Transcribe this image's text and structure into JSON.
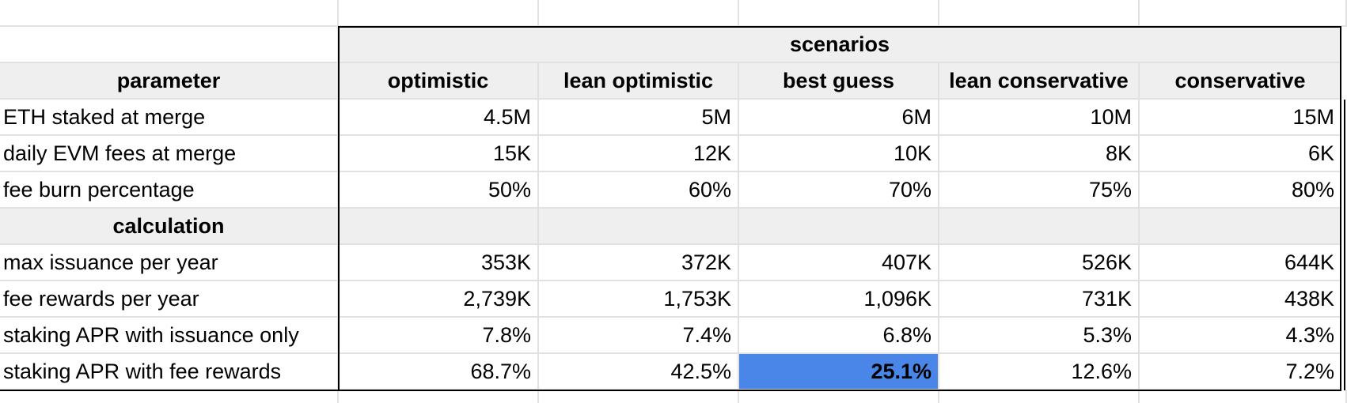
{
  "sheet": {
    "group_header": "scenarios",
    "parameter_header": "parameter",
    "scenario_headers": [
      "optimistic",
      "lean optimistic",
      "best guess",
      "lean conservative",
      "conservative"
    ],
    "parameters": [
      {
        "label": "ETH staked at merge",
        "values": [
          "4.5M",
          "5M",
          "6M",
          "10M",
          "15M"
        ]
      },
      {
        "label": "daily EVM fees at merge",
        "values": [
          "15K",
          "12K",
          "10K",
          "8K",
          "6K"
        ]
      },
      {
        "label": "fee burn percentage",
        "values": [
          "50%",
          "60%",
          "70%",
          "75%",
          "80%"
        ]
      }
    ],
    "calculation_header": "calculation",
    "calculations": [
      {
        "label": "max issuance per year",
        "values": [
          "353K",
          "372K",
          "407K",
          "526K",
          "644K"
        ]
      },
      {
        "label": "fee rewards per year",
        "values": [
          "2,739K",
          "1,753K",
          "1,096K",
          "731K",
          "438K"
        ]
      },
      {
        "label": "staking APR with issuance only",
        "values": [
          "7.8%",
          "7.4%",
          "6.8%",
          "5.3%",
          "4.3%"
        ]
      },
      {
        "label": "staking APR with fee rewards",
        "values": [
          "68.7%",
          "42.5%",
          "25.1%",
          "12.6%",
          "7.2%"
        ]
      }
    ],
    "highlight": {
      "row": "staking APR with fee rewards",
      "column": "best guess",
      "color": "#4a86e8"
    },
    "colors": {
      "header_bg": "#efefef",
      "gridline": "#e1e1e1",
      "border": "#000000"
    }
  }
}
